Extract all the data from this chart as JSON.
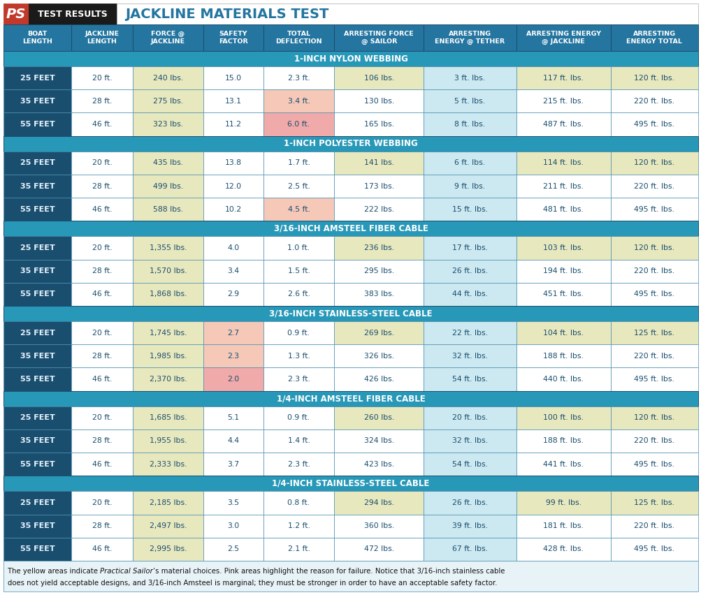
{
  "title_left": "PS TEST RESULTS",
  "title_right": "JACKLINE MATERIALS TEST",
  "header_texts": [
    "BOAT\nLENGTH",
    "JACKLINE\nLENGTH",
    "FORCE @\nJACKLINE",
    "SAFETY\nFACTOR",
    "TOTAL\nDEFLECTION",
    "ARRESTING FORCE\n@ SAILOR",
    "ARRESTING\nENERGY @ TETHER",
    "ARRESTING ENERGY\n@ JACKLINE",
    "ARRESTING\nENERGY TOTAL"
  ],
  "section_headers": [
    "1-INCH NYLON WEBBING",
    "1-INCH POLYESTER WEBBING",
    "3/16-INCH AMSTEEL FIBER CABLE",
    "3/16-INCH STAINLESS-STEEL CABLE",
    "1/4-INCH AMSTEEL FIBER CABLE",
    "1/4-INCH STAINLESS-STEEL CABLE"
  ],
  "rows": [
    [
      "25 FEET",
      "20 ft.",
      "240 lbs.",
      "15.0",
      "2.3 ft.",
      "106 lbs.",
      "3 ft. lbs.",
      "117 ft. lbs.",
      "120 ft. lbs."
    ],
    [
      "35 FEET",
      "28 ft.",
      "275 lbs.",
      "13.1",
      "3.4 ft.",
      "130 lbs.",
      "5 ft. lbs.",
      "215 ft. lbs.",
      "220 ft. lbs."
    ],
    [
      "55 FEET",
      "46 ft.",
      "323 lbs.",
      "11.2",
      "6.0 ft.",
      "165 lbs.",
      "8 ft. lbs.",
      "487 ft. lbs.",
      "495 ft. lbs."
    ],
    [
      "25 FEET",
      "20 ft.",
      "435 lbs.",
      "13.8",
      "1.7 ft.",
      "141 lbs.",
      "6 ft. lbs.",
      "114 ft. lbs.",
      "120 ft. lbs."
    ],
    [
      "35 FEET",
      "28 ft.",
      "499 lbs.",
      "12.0",
      "2.5 ft.",
      "173 lbs.",
      "9 ft. lbs.",
      "211 ft. lbs.",
      "220 ft. lbs."
    ],
    [
      "55 FEET",
      "46 ft.",
      "588 lbs.",
      "10.2",
      "4.5 ft.",
      "222 lbs.",
      "15 ft. lbs.",
      "481 ft. lbs.",
      "495 ft. lbs."
    ],
    [
      "25 FEET",
      "20 ft.",
      "1,355 lbs.",
      "4.0",
      "1.0 ft.",
      "236 lbs.",
      "17 ft. lbs.",
      "103 ft. lbs.",
      "120 ft. lbs."
    ],
    [
      "35 FEET",
      "28 ft.",
      "1,570 lbs.",
      "3.4",
      "1.5 ft.",
      "295 lbs.",
      "26 ft. lbs.",
      "194 ft. lbs.",
      "220 ft. lbs."
    ],
    [
      "55 FEET",
      "46 ft.",
      "1,868 lbs.",
      "2.9",
      "2.6 ft.",
      "383 lbs.",
      "44 ft. lbs.",
      "451 ft. lbs.",
      "495 ft. lbs."
    ],
    [
      "25 FEET",
      "20 ft.",
      "1,745 lbs.",
      "2.7",
      "0.9 ft.",
      "269 lbs.",
      "22 ft. lbs.",
      "104 ft. lbs.",
      "125 ft. lbs."
    ],
    [
      "35 FEET",
      "28 ft.",
      "1,985 lbs.",
      "2.3",
      "1.3 ft.",
      "326 lbs.",
      "32 ft. lbs.",
      "188 ft. lbs.",
      "220 ft. lbs."
    ],
    [
      "55 FEET",
      "46 ft.",
      "2,370 lbs.",
      "2.0",
      "2.3 ft.",
      "426 lbs.",
      "54 ft. lbs.",
      "440 ft. lbs.",
      "495 ft. lbs."
    ],
    [
      "25 FEET",
      "20 ft.",
      "1,685 lbs.",
      "5.1",
      "0.9 ft.",
      "260 lbs.",
      "20 ft. lbs.",
      "100 ft. lbs.",
      "120 ft. lbs."
    ],
    [
      "35 FEET",
      "28 ft.",
      "1,955 lbs.",
      "4.4",
      "1.4 ft.",
      "324 lbs.",
      "32 ft. lbs.",
      "188 ft. lbs.",
      "220 ft. lbs."
    ],
    [
      "55 FEET",
      "46 ft.",
      "2,333 lbs.",
      "3.7",
      "2.3 ft.",
      "423 lbs.",
      "54 ft. lbs.",
      "441 ft. lbs.",
      "495 ft. lbs."
    ],
    [
      "25 FEET",
      "20 ft.",
      "2,185 lbs.",
      "3.5",
      "0.8 ft.",
      "294 lbs.",
      "26 ft. lbs.",
      "99 ft. lbs.",
      "125 ft. lbs."
    ],
    [
      "35 FEET",
      "28 ft.",
      "2,497 lbs.",
      "3.0",
      "1.2 ft.",
      "360 lbs.",
      "39 ft. lbs.",
      "181 ft. lbs.",
      "220 ft. lbs."
    ],
    [
      "55 FEET",
      "46 ft.",
      "2,995 lbs.",
      "2.5",
      "2.1 ft.",
      "472 lbs.",
      "67 ft. lbs.",
      "428 ft. lbs.",
      "495 ft. lbs."
    ]
  ],
  "cell_bg": [
    [
      "t",
      "w",
      "y",
      "w",
      "w",
      "y",
      "lb",
      "y",
      "y"
    ],
    [
      "t",
      "w",
      "y",
      "w",
      "p",
      "w",
      "lb",
      "w",
      "w"
    ],
    [
      "t",
      "w",
      "y",
      "w",
      "p2",
      "w",
      "lb",
      "w",
      "w"
    ],
    [
      "t",
      "w",
      "y",
      "w",
      "w",
      "y",
      "lb",
      "y",
      "y"
    ],
    [
      "t",
      "w",
      "y",
      "w",
      "w",
      "w",
      "lb",
      "w",
      "w"
    ],
    [
      "t",
      "w",
      "y",
      "w",
      "p",
      "w",
      "lb",
      "w",
      "w"
    ],
    [
      "t",
      "w",
      "y",
      "w",
      "w",
      "y",
      "lb",
      "y",
      "y"
    ],
    [
      "t",
      "w",
      "y",
      "w",
      "w",
      "w",
      "lb",
      "w",
      "w"
    ],
    [
      "t",
      "w",
      "y",
      "w",
      "w",
      "w",
      "lb",
      "w",
      "w"
    ],
    [
      "t",
      "w",
      "y",
      "p",
      "w",
      "y",
      "lb",
      "y",
      "y"
    ],
    [
      "t",
      "w",
      "y",
      "p",
      "w",
      "w",
      "lb",
      "w",
      "w"
    ],
    [
      "t",
      "w",
      "y",
      "p2",
      "w",
      "w",
      "lb",
      "w",
      "w"
    ],
    [
      "t",
      "w",
      "y",
      "w",
      "w",
      "y",
      "lb",
      "y",
      "y"
    ],
    [
      "t",
      "w",
      "y",
      "w",
      "w",
      "w",
      "lb",
      "w",
      "w"
    ],
    [
      "t",
      "w",
      "y",
      "w",
      "w",
      "w",
      "lb",
      "w",
      "w"
    ],
    [
      "t",
      "w",
      "y",
      "w",
      "w",
      "y",
      "lb",
      "y",
      "y"
    ],
    [
      "t",
      "w",
      "y",
      "w",
      "w",
      "w",
      "lb",
      "w",
      "w"
    ],
    [
      "t",
      "w",
      "y",
      "w",
      "w",
      "w",
      "lb",
      "w",
      "w"
    ]
  ],
  "colors": {
    "yellow": "#e8e8be",
    "pink": "#f5c8b8",
    "pink2": "#f0aaaa",
    "light_blue": "#cce8f0",
    "teal_header": "#2475a0",
    "dark_teal": "#1a4e6e",
    "white": "#ffffff",
    "section_bg": "#2898b8",
    "boat_col": "#1a4e6e",
    "footnote_bg": "#e8f3f8",
    "title_black": "#1a1a1a",
    "title_red": "#c0392b",
    "title_blue": "#2475a0",
    "border": "#4a90b0"
  },
  "footnote_line1": "The yellow areas indicate ",
  "footnote_italic": "Practical Sailor",
  "footnote_line1b": "’s material choices. Pink areas highlight the reason for failure. Notice that 3/16-inch stainless cable",
  "footnote_line2": "does not yield acceptable designs, and 3/16-inch Amsteel is marginal; they must be stronger in order to have an acceptable safety factor."
}
